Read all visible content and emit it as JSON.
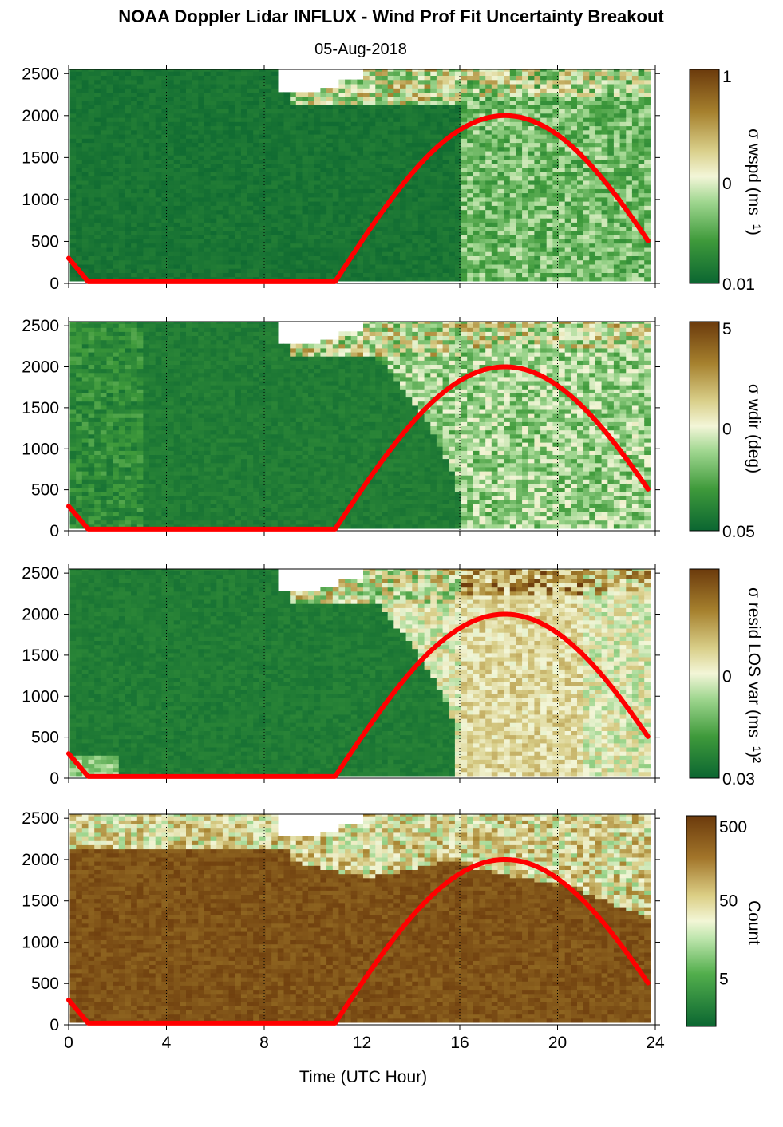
{
  "title": "NOAA Doppler Lidar INFLUX - Wind Prof Fit Uncertainty Breakout",
  "subtitle": "05-Aug-2018",
  "xlabel": "Time (UTC Hour)",
  "colors": {
    "dark_green": "#0b6631",
    "light": "#f5f5dc",
    "dark_brown": "#6b3a0c",
    "sun_curve": "#ff0000"
  },
  "chart_data": [
    {
      "type": "heatmap",
      "name": "sigma-wspd",
      "xlim": [
        0,
        24
      ],
      "ylim": [
        0,
        2550
      ],
      "x_ticks": [
        "0",
        "4",
        "8",
        "12",
        "16",
        "20",
        "24"
      ],
      "y_ticks": [
        "0",
        "500",
        "1000",
        "1500",
        "2000",
        "2500"
      ],
      "colorbar": {
        "label": "σ wspd (ms⁻¹)",
        "ticks": [
          "1",
          "0",
          "0.01"
        ],
        "scale": "log"
      },
      "sun_elevation_curve": {
        "x": [
          0,
          0.8,
          10.9,
          12,
          14,
          16,
          17.9,
          20,
          22,
          23.8
        ],
        "y": [
          300,
          20,
          20,
          560,
          1300,
          1800,
          2000,
          1780,
          1180,
          450
        ]
      }
    },
    {
      "type": "heatmap",
      "name": "sigma-wdir",
      "xlim": [
        0,
        24
      ],
      "ylim": [
        0,
        2550
      ],
      "x_ticks": [
        "0",
        "4",
        "8",
        "12",
        "16",
        "20",
        "24"
      ],
      "y_ticks": [
        "0",
        "500",
        "1000",
        "1500",
        "2000",
        "2500"
      ],
      "colorbar": {
        "label": "σ wdir (deg)",
        "ticks": [
          "5",
          "0",
          "0.05"
        ],
        "scale": "log"
      },
      "sun_elevation_curve": {
        "x": [
          0,
          0.8,
          10.9,
          12,
          14,
          16,
          17.9,
          20,
          22,
          23.8
        ],
        "y": [
          300,
          20,
          20,
          560,
          1300,
          1800,
          2000,
          1780,
          1180,
          450
        ]
      }
    },
    {
      "type": "heatmap",
      "name": "sigma-resid-los-var",
      "xlim": [
        0,
        24
      ],
      "ylim": [
        0,
        2550
      ],
      "x_ticks": [
        "0",
        "4",
        "8",
        "12",
        "16",
        "20",
        "24"
      ],
      "y_ticks": [
        "0",
        "500",
        "1000",
        "1500",
        "2000",
        "2500"
      ],
      "colorbar": {
        "label": "σ resid LOS var (ms⁻¹)²",
        "ticks": [
          "0",
          "0.03"
        ],
        "scale": "log"
      },
      "sun_elevation_curve": {
        "x": [
          0,
          0.8,
          10.9,
          12,
          14,
          16,
          17.9,
          20,
          22,
          23.8
        ],
        "y": [
          300,
          20,
          20,
          560,
          1300,
          1800,
          2000,
          1780,
          1180,
          450
        ]
      }
    },
    {
      "type": "heatmap",
      "name": "count",
      "xlim": [
        0,
        24
      ],
      "ylim": [
        0,
        2550
      ],
      "x_ticks": [
        "0",
        "4",
        "8",
        "12",
        "16",
        "20",
        "24"
      ],
      "y_ticks": [
        "0",
        "500",
        "1000",
        "1500",
        "2000",
        "2500"
      ],
      "colorbar": {
        "label": "Count",
        "ticks": [
          "500",
          "50",
          "5"
        ],
        "scale": "log"
      },
      "sun_elevation_curve": {
        "x": [
          0,
          0.8,
          10.9,
          12,
          14,
          16,
          17.9,
          20,
          22,
          23.8
        ],
        "y": [
          300,
          20,
          20,
          560,
          1300,
          1800,
          2000,
          1780,
          1180,
          450
        ]
      }
    }
  ]
}
